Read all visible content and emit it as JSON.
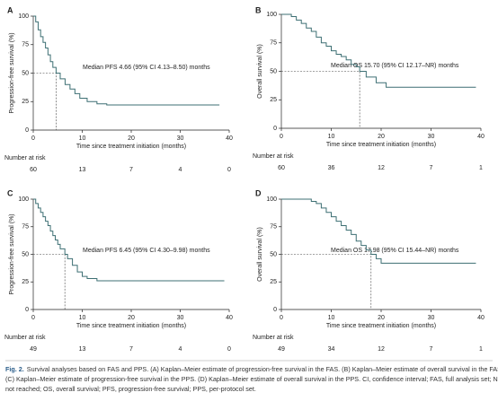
{
  "chart_data": [
    {
      "type": "step",
      "panel": "A",
      "ylabel": "Progression-free survival (%)",
      "xlabel": "Time since treatment initiation (months)",
      "annotation": "Median PFS 4.66 (95% CI 4.13–8.50) months",
      "median": {
        "x": 4.66,
        "y": 50
      },
      "x": [
        0,
        0.5,
        1,
        1.5,
        2,
        2.5,
        3,
        3.5,
        4,
        4.66,
        5.5,
        6.5,
        7.5,
        8.5,
        9.5,
        11,
        13,
        15,
        38
      ],
      "values": [
        100,
        95,
        88,
        82,
        77,
        72,
        66,
        60,
        55,
        50,
        45,
        40,
        36,
        32,
        28,
        25,
        23,
        22,
        22
      ],
      "color": "#3d6f73",
      "xlim": [
        0,
        40
      ],
      "ylim": [
        0,
        100
      ],
      "xticks": [
        0,
        10,
        20,
        30,
        40
      ],
      "yticks": [
        0,
        25,
        50,
        75,
        100
      ],
      "at_risk_label": "Number at risk",
      "at_risk": [
        60,
        13,
        7,
        4,
        0
      ]
    },
    {
      "type": "step",
      "panel": "B",
      "ylabel": "Overall survival (%)",
      "xlabel": "Time since treatment initiation (months)",
      "annotation": "Median OS 15.70 (95% CI 12.17–NR) months",
      "median": {
        "x": 15.7,
        "y": 50
      },
      "x": [
        0,
        2,
        3,
        4,
        5,
        6,
        7,
        8,
        9,
        10,
        11,
        12,
        13,
        14,
        15,
        15.7,
        17,
        19,
        21,
        39
      ],
      "values": [
        100,
        98,
        95,
        92,
        88,
        85,
        80,
        75,
        72,
        68,
        65,
        63,
        60,
        56,
        54,
        50,
        45,
        40,
        36,
        36
      ],
      "color": "#3d6f73",
      "xlim": [
        0,
        40
      ],
      "ylim": [
        0,
        100
      ],
      "xticks": [
        0,
        10,
        20,
        30,
        40
      ],
      "yticks": [
        0,
        25,
        50,
        75,
        100
      ],
      "at_risk_label": "Number at risk",
      "at_risk": [
        60,
        36,
        12,
        7,
        1
      ]
    },
    {
      "type": "step",
      "panel": "C",
      "ylabel": "Progression-free survival (%)",
      "xlabel": "Time since treatment initiation (months)",
      "annotation": "Median PFS 6.45 (95% CI 4.30–9.98) months",
      "median": {
        "x": 6.45,
        "y": 50
      },
      "x": [
        0,
        0.5,
        1,
        1.5,
        2,
        2.5,
        3,
        3.5,
        4,
        4.5,
        5,
        5.5,
        6.45,
        7,
        8,
        9,
        10,
        11,
        13,
        39
      ],
      "values": [
        100,
        96,
        92,
        88,
        84,
        80,
        76,
        71,
        67,
        63,
        59,
        55,
        50,
        46,
        40,
        34,
        30,
        28,
        26,
        26
      ],
      "color": "#3d6f73",
      "xlim": [
        0,
        40
      ],
      "ylim": [
        0,
        100
      ],
      "xticks": [
        0,
        10,
        20,
        30,
        40
      ],
      "yticks": [
        0,
        25,
        50,
        75,
        100
      ],
      "at_risk_label": "Number at risk",
      "at_risk": [
        49,
        13,
        7,
        4,
        0
      ]
    },
    {
      "type": "step",
      "panel": "D",
      "ylabel": "Overall survival (%)",
      "xlabel": "Time since treatment initiation (months)",
      "annotation": "Median OS 17.98 (95% CI 15.44–NR) months",
      "median": {
        "x": 17.98,
        "y": 50
      },
      "x": [
        0,
        6,
        7,
        8,
        9,
        10,
        11,
        12,
        13,
        14,
        15,
        16,
        17,
        17.98,
        19,
        20,
        39
      ],
      "values": [
        100,
        98,
        96,
        92,
        88,
        84,
        80,
        76,
        72,
        68,
        62,
        58,
        54,
        50,
        46,
        42,
        42
      ],
      "color": "#3d6f73",
      "xlim": [
        0,
        40
      ],
      "ylim": [
        0,
        100
      ],
      "xticks": [
        0,
        10,
        20,
        30,
        40
      ],
      "yticks": [
        0,
        25,
        50,
        75,
        100
      ],
      "at_risk_label": "Number at risk",
      "at_risk": [
        49,
        34,
        12,
        7,
        1
      ]
    }
  ],
  "caption": {
    "label": "Fig. 2.",
    "lines": [
      "Survival analyses based on FAS and PPS. (A) Kaplan–Meier estimate of progression-free survival in the FAS. (B) Kaplan–Meier estimate of overall survival in the FAS.",
      "(C) Kaplan–Meier estimate of progression-free survival in the PPS. (D) Kaplan–Meier estimate of overall survival in the PPS. CI, confidence interval; FAS, full analysis set; NR,",
      "not reached; OS, overall survival; PFS, progression-free survival; PPS, per-protocol set."
    ]
  }
}
